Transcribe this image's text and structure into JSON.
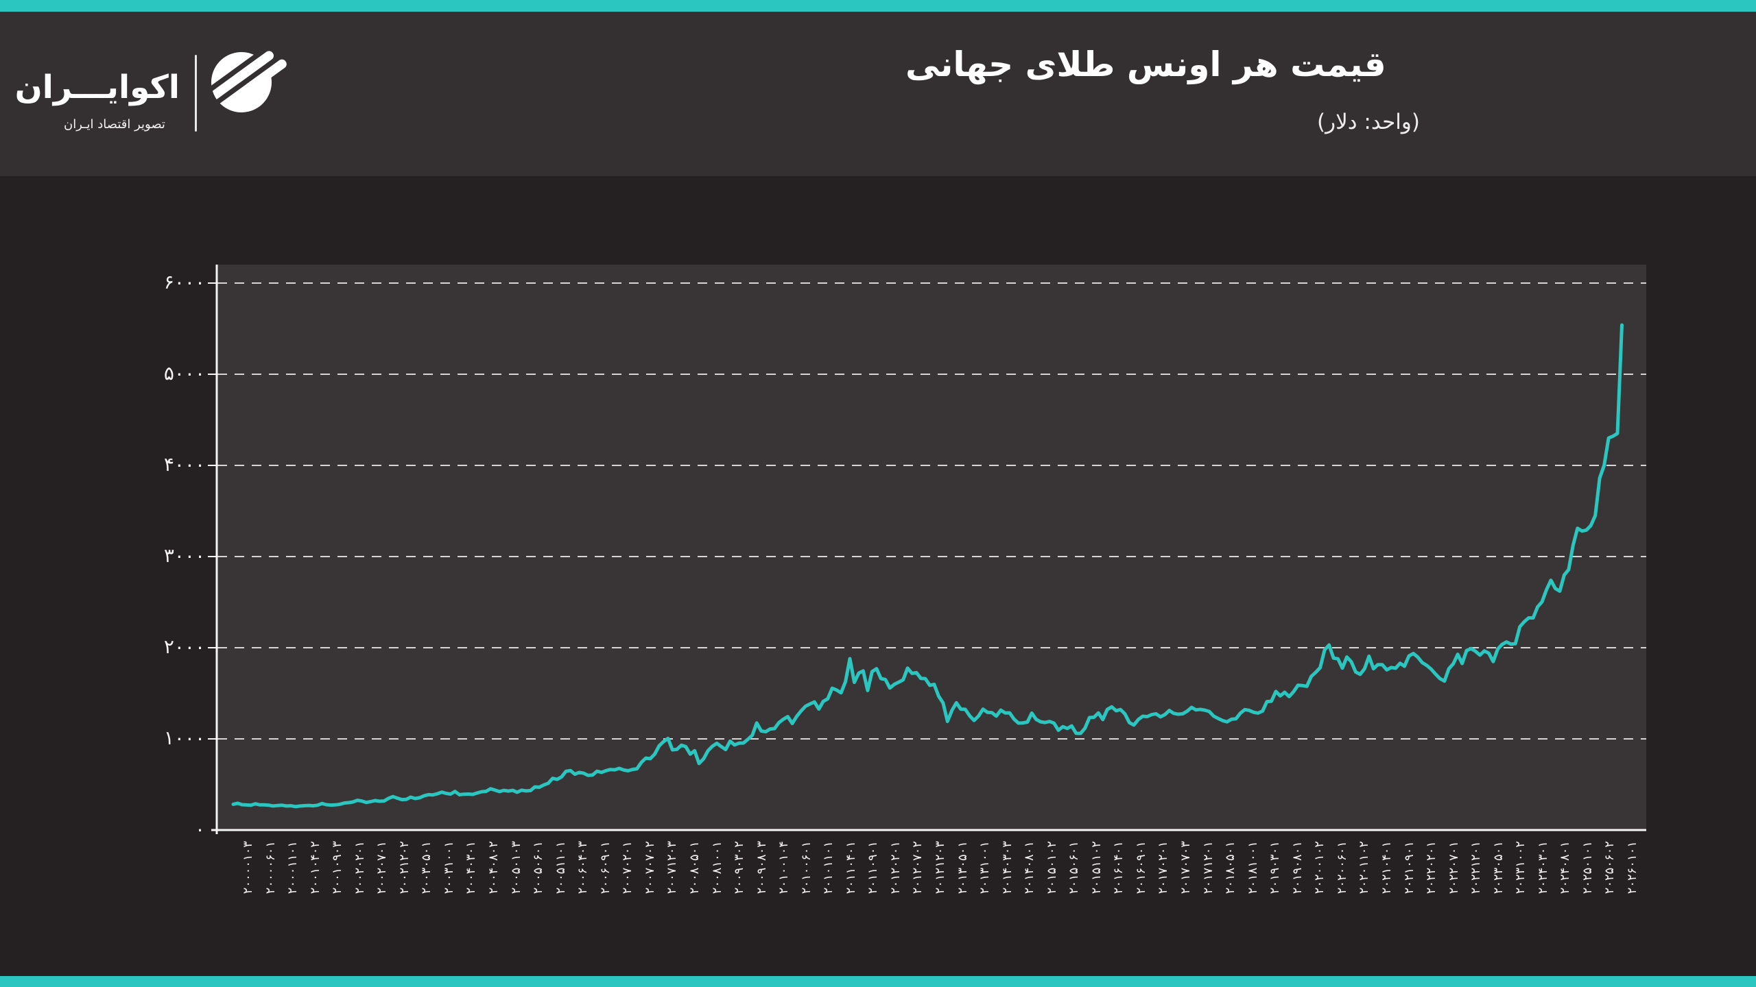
{
  "page": {
    "accent_color": "#2BC6BF",
    "background_color": "#252122",
    "header_background": "#343031",
    "plot_background": "#393536"
  },
  "header": {
    "title": "قیمت هر اونس طلای جهانی",
    "subtitle": "(واحد: دلار)",
    "logo": {
      "name": "اکوایـــران",
      "tagline": "تصویر اقتصاد ایـران",
      "icon": "ecoiran-globe-stripes"
    }
  },
  "chart_data": {
    "type": "line",
    "title": "قیمت هر اونس طلای جهانی",
    "unit_label": "(واحد: دلار)",
    "currency": "USD",
    "line_color": "#2BC6BF",
    "line_width": 5,
    "grid": "horizontal-dashed",
    "legend": "none",
    "ylim": [
      0,
      6000
    ],
    "y_ticks": [
      0,
      1000,
      2000,
      3000,
      4000,
      5000,
      6000
    ],
    "y_tick_labels_fa": [
      "۰",
      "۱۰۰۰",
      "۲۰۰۰",
      "۳۰۰۰",
      "۴۰۰۰",
      "۵۰۰۰",
      "۶۰۰۰"
    ],
    "x_tick_labels_fa": [
      "۲۰۰۰۰۱۰۳",
      "۲۰۰۰۰۶۰۱",
      "۲۰۰۰۱۱۰۱",
      "۲۰۰۱۰۴۰۲",
      "۲۰۰۱۰۹۰۳",
      "۲۰۰۲۰۲۰۱",
      "۲۰۰۲۰۷۰۱",
      "۲۰۰۲۱۲۰۲",
      "۲۰۰۳۰۵۰۱",
      "۲۰۰۳۱۰۰۱",
      "۲۰۰۴۰۳۰۱",
      "۲۰۰۴۰۸۰۲",
      "۲۰۰۵۰۱۰۳",
      "۲۰۰۵۰۶۰۱",
      "۲۰۰۵۱۱۰۱",
      "۲۰۰۶۰۴۰۳",
      "۲۰۰۶۰۹۰۱",
      "۲۰۰۷۰۲۰۱",
      "۲۰۰۷۰۷۰۲",
      "۲۰۰۷۱۲۰۳",
      "۲۰۰۸۰۵۰۱",
      "۲۰۰۸۱۰۰۱",
      "۲۰۰۹۰۳۰۲",
      "۲۰۰۹۰۸۰۳",
      "۲۰۱۰۰۱۰۴",
      "۲۰۱۰۰۶۰۱",
      "۲۰۱۰۱۱۰۱",
      "۲۰۱۱۰۴۰۱",
      "۲۰۱۱۰۹۰۱",
      "۲۰۱۲۰۲۰۱",
      "۲۰۱۲۰۷۰۲",
      "۲۰۱۲۱۲۰۳",
      "۲۰۱۳۰۵۰۱",
      "۲۰۱۳۱۰۰۱",
      "۲۰۱۴۰۳۰۳",
      "۲۰۱۴۰۸۰۱",
      "۲۰۱۵۰۱۰۲",
      "۲۰۱۵۰۶۰۱",
      "۲۰۱۵۱۱۰۲",
      "۲۰۱۶۰۴۰۱",
      "۲۰۱۶۰۹۰۱",
      "۲۰۱۷۰۲۰۱",
      "۲۰۱۷۰۷۰۳",
      "۲۰۱۷۱۲۰۱",
      "۲۰۱۸۰۵۰۱",
      "۲۰۱۸۱۰۰۱",
      "۲۰۱۹۰۳۰۱",
      "۲۰۱۹۰۸۰۱",
      "۲۰۲۰۰۱۰۲",
      "۲۰۲۰۰۶۰۱",
      "۲۰۲۰۱۱۰۲",
      "۲۰۲۱۰۴۰۱",
      "۲۰۲۱۰۹۰۱",
      "۲۰۲۲۰۲۰۱",
      "۲۰۲۲۰۷۰۱",
      "۲۰۲۲۱۲۰۱",
      "۲۰۲۳۰۵۰۱",
      "۲۰۲۳۱۰۰۲",
      "۲۰۲۴۰۳۰۱",
      "۲۰۲۴۰۸۰۱",
      "۲۰۲۵۰۱۰۱",
      "۲۰۲۵۰۶۰۲",
      "۲۰۲۶۰۱۰۱"
    ],
    "x_tick_labels_iso": [
      "2000-01-03",
      "2000-06-01",
      "2000-11-01",
      "2001-04-02",
      "2001-09-03",
      "2002-02-01",
      "2002-07-01",
      "2002-12-02",
      "2003-05-01",
      "2003-10-01",
      "2004-03-01",
      "2004-08-02",
      "2005-01-03",
      "2005-06-01",
      "2005-11-01",
      "2006-04-03",
      "2006-09-01",
      "2007-02-01",
      "2007-07-02",
      "2007-12-03",
      "2008-05-01",
      "2008-10-01",
      "2009-03-02",
      "2009-08-03",
      "2010-01-04",
      "2010-06-01",
      "2010-11-01",
      "2011-04-01",
      "2011-09-01",
      "2012-02-01",
      "2012-07-02",
      "2012-12-03",
      "2013-05-01",
      "2013-10-01",
      "2014-03-03",
      "2014-08-01",
      "2015-01-02",
      "2015-06-01",
      "2015-11-02",
      "2016-04-01",
      "2016-09-01",
      "2017-02-01",
      "2017-07-03",
      "2017-12-01",
      "2018-05-01",
      "2018-10-01",
      "2019-03-01",
      "2019-08-01",
      "2020-01-02",
      "2020-06-01",
      "2020-11-02",
      "2021-04-01",
      "2021-09-01",
      "2022-02-01",
      "2022-07-01",
      "2022-12-01",
      "2023-05-01",
      "2023-10-02",
      "2024-03-01",
      "2024-08-01",
      "2025-01-01",
      "2025-06-02",
      "2026-01-01"
    ],
    "series": [
      {
        "name": "gold_ounce_price_usd",
        "start": "2000-01",
        "interval": "monthly",
        "values": [
          283,
          294,
          278,
          275,
          272,
          288,
          276,
          277,
          273,
          264,
          269,
          272,
          264,
          266,
          257,
          263,
          267,
          270,
          266,
          272,
          291,
          278,
          274,
          276,
          282,
          296,
          301,
          308,
          326,
          318,
          303,
          312,
          323,
          316,
          319,
          347,
          367,
          350,
          334,
          336,
          361,
          346,
          354,
          375,
          388,
          386,
          398,
          416,
          402,
          395,
          423,
          387,
          393,
          395,
          391,
          407,
          420,
          425,
          453,
          438,
          422,
          435,
          428,
          435,
          414,
          437,
          429,
          433,
          473,
          470,
          495,
          513,
          568,
          556,
          582,
          644,
          653,
          613,
          632,
          623,
          599,
          603,
          646,
          632,
          651,
          664,
          661,
          677,
          659,
          650,
          665,
          672,
          743,
          789,
          783,
          833,
          923,
          971,
          1005,
          880,
          885,
          930,
          915,
          833,
          870,
          730,
          780,
          869,
          919,
          952,
          916,
          883,
          975,
          934,
          953,
          955,
          995,
          1040,
          1175,
          1087,
          1078,
          1108,
          1113,
          1179,
          1215,
          1244,
          1169,
          1246,
          1307,
          1359,
          1383,
          1405,
          1327,
          1411,
          1439,
          1556,
          1536,
          1505,
          1628,
          1880,
          1620,
          1722,
          1746,
          1531,
          1738,
          1770,
          1662,
          1651,
          1558,
          1598,
          1622,
          1648,
          1776,
          1719,
          1726,
          1664,
          1661,
          1588,
          1598,
          1469,
          1394,
          1192,
          1313,
          1396,
          1326,
          1324,
          1253,
          1202,
          1251,
          1326,
          1291,
          1288,
          1250,
          1315,
          1285,
          1285,
          1216,
          1173,
          1175,
          1184,
          1283,
          1213,
          1187,
          1180,
          1191,
          1172,
          1095,
          1134,
          1114,
          1142,
          1061,
          1060,
          1118,
          1234,
          1237,
          1285,
          1212,
          1322,
          1351,
          1309,
          1322,
          1272,
          1178,
          1152,
          1212,
          1248,
          1244,
          1266,
          1275,
          1242,
          1267,
          1311,
          1280,
          1271,
          1275,
          1303,
          1345,
          1318,
          1323,
          1315,
          1301,
          1250,
          1224,
          1201,
          1187,
          1215,
          1220,
          1281,
          1321,
          1313,
          1292,
          1283,
          1305,
          1409,
          1413,
          1520,
          1472,
          1511,
          1464,
          1517,
          1589,
          1585,
          1577,
          1686,
          1730,
          1781,
          1976,
          2030,
          1886,
          1879,
          1776,
          1898,
          1847,
          1734,
          1708,
          1769,
          1907,
          1770,
          1814,
          1814,
          1757,
          1783,
          1775,
          1829,
          1797,
          1909,
          1937,
          1897,
          1837,
          1807,
          1766,
          1711,
          1661,
          1634,
          1769,
          1824,
          1928,
          1827,
          1969,
          1990,
          1962,
          1919,
          1965,
          1940,
          1848,
          1984,
          2036,
          2063,
          2040,
          2044,
          2230,
          2286,
          2327,
          2327,
          2448,
          2503,
          2635,
          2740,
          2650,
          2620,
          2798,
          2858,
          3124,
          3310,
          3280,
          3290,
          3340,
          3450,
          3860,
          4000,
          4300,
          4320,
          4350,
          5540
        ]
      }
    ]
  }
}
